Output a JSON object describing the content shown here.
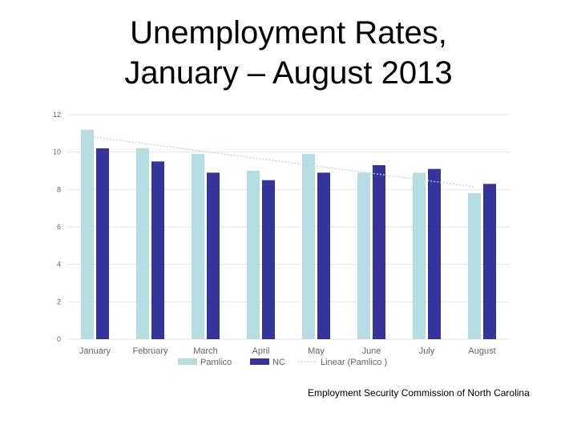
{
  "slide": {
    "title_line1": "Unemployment Rates,",
    "title_line2": "January – August 2013",
    "source": "Employment Security Commission of North Carolina"
  },
  "colors": {
    "pamlico": "#b6dde2",
    "nc": "#34349a",
    "trend": "#b9d8df",
    "grid": "#e6e6e6",
    "tick_text": "#666666"
  },
  "chart_data": {
    "type": "bar",
    "categories": [
      "January",
      "February",
      "March",
      "April",
      "May",
      "June",
      "July",
      "August"
    ],
    "series": [
      {
        "name": "Pamlico",
        "values": [
          11.2,
          10.2,
          9.9,
          9.0,
          9.9,
          8.9,
          8.9,
          7.8
        ]
      },
      {
        "name": "NC",
        "values": [
          10.2,
          9.5,
          8.9,
          8.5,
          8.9,
          9.3,
          9.1,
          8.3
        ]
      }
    ],
    "trendline": {
      "name": "Linear (Pamlico )",
      "start": 10.85,
      "end": 8.15
    },
    "ylim": [
      0,
      12
    ],
    "yticks": [
      "0",
      "2",
      "4",
      "6",
      "8",
      "10",
      "12"
    ],
    "grid": true,
    "legend_position": "bottom"
  }
}
